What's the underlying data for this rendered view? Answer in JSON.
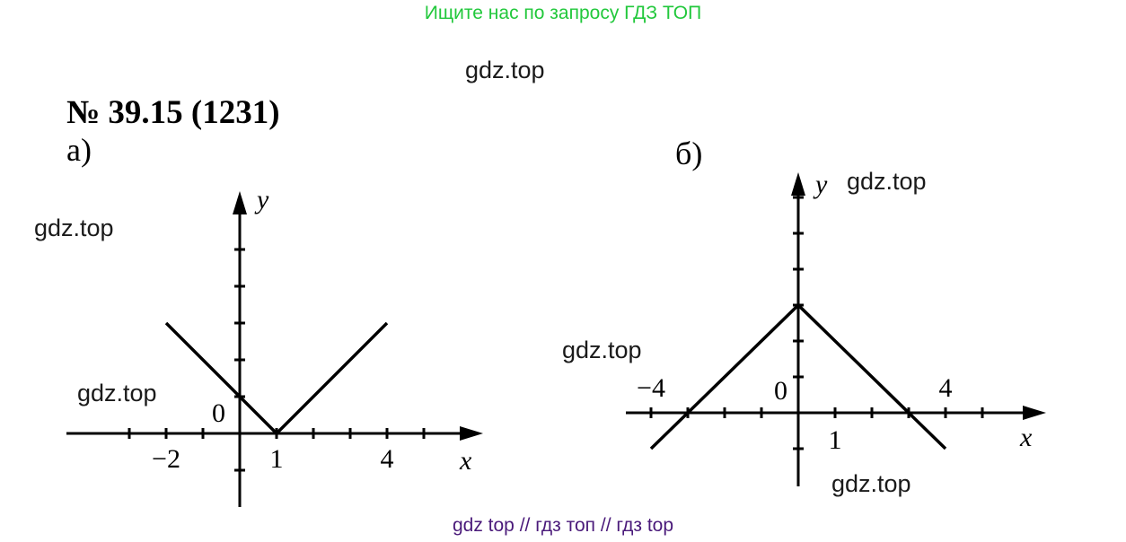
{
  "banner": "Ищите нас по запросу ГДЗ ТОП",
  "watermark": "gdz.top",
  "footer": "gdz top  //  гдз топ  //  гдз top",
  "problem_title": "№ 39.15 (1231)",
  "colors": {
    "banner": "#22c83c",
    "footer": "#4a1a7a",
    "ink": "#000000"
  },
  "chart_data": [
    {
      "type": "line",
      "panel_label": "а)",
      "xlabel": "x",
      "ylabel": "y",
      "origin_label": "0",
      "x_tick_labels": [
        {
          "value": -2,
          "text": "−2"
        },
        {
          "value": 1,
          "text": "1"
        },
        {
          "value": 4,
          "text": "4"
        }
      ],
      "xlim": [
        -4.8,
        6.2
      ],
      "ylim": [
        -2,
        6.5
      ],
      "grid": false,
      "series": [
        {
          "x": [
            -2,
            1,
            4
          ],
          "y": [
            3,
            0,
            3
          ]
        }
      ]
    },
    {
      "type": "line",
      "panel_label": "б)",
      "xlabel": "x",
      "ylabel": "y",
      "origin_label": "0",
      "x_tick_labels": [
        {
          "value": -4,
          "text": "−4"
        },
        {
          "value": 1,
          "text": "1"
        },
        {
          "value": 4,
          "text": "4"
        }
      ],
      "xlim": [
        -5,
        7
      ],
      "ylim": [
        -2,
        7
      ],
      "grid": false,
      "series": [
        {
          "x": [
            -4,
            0,
            4
          ],
          "y": [
            -1,
            3,
            -1
          ]
        }
      ]
    }
  ]
}
